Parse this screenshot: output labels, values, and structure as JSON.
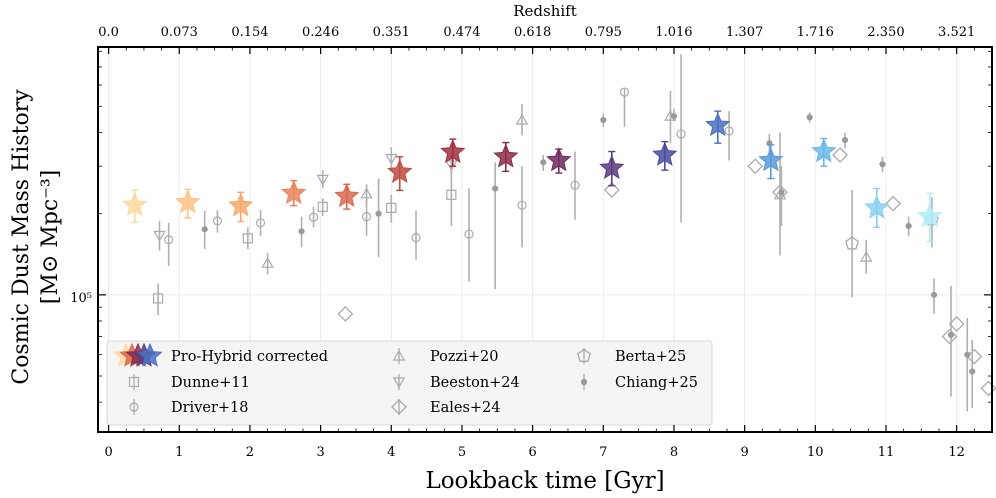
{
  "chart_data": {
    "type": "scatter",
    "xlabel": "Lookback time [Gyr]",
    "ylabel_line1": "Cosmic Dust Mass History",
    "ylabel_line2": "[M⊙ Mpc⁻³]",
    "top_axis_label": "Redshift",
    "top_ticks": [
      "0.0",
      "0.073",
      "0.154",
      "0.246",
      "0.351",
      "0.474",
      "0.618",
      "0.795",
      "1.016",
      "1.307",
      "1.716",
      "2.350",
      "3.521"
    ],
    "x_ticks": [
      "0",
      "1",
      "2",
      "3",
      "4",
      "5",
      "6",
      "7",
      "8",
      "9",
      "10",
      "11",
      "12"
    ],
    "y_tick_label": "10⁵",
    "y_scale": "log",
    "xlim": [
      -0.15,
      12.5
    ],
    "ylim": [
      31000,
      830000
    ],
    "grid": true,
    "legend_position": "lower-left",
    "series": [
      {
        "name": "Pro-Hybrid corrected",
        "marker": "star",
        "points": [
          {
            "x": 0.37,
            "y": 215000,
            "lo": 186000,
            "hi": 245000,
            "color": "#fdd9a0"
          },
          {
            "x": 1.12,
            "y": 220000,
            "lo": 193000,
            "hi": 246000,
            "color": "#fdc48a"
          },
          {
            "x": 1.87,
            "y": 214000,
            "lo": 187000,
            "hi": 240000,
            "color": "#f8a86c"
          },
          {
            "x": 2.62,
            "y": 238000,
            "lo": 214000,
            "hi": 265000,
            "color": "#e8845a"
          },
          {
            "x": 3.37,
            "y": 232000,
            "lo": 208000,
            "hi": 257000,
            "color": "#d8684c"
          },
          {
            "x": 4.12,
            "y": 285000,
            "lo": 244000,
            "hi": 325000,
            "color": "#c04a40"
          },
          {
            "x": 4.87,
            "y": 338000,
            "lo": 300000,
            "hi": 378000,
            "color": "#a03040"
          },
          {
            "x": 5.62,
            "y": 325000,
            "lo": 287000,
            "hi": 367000,
            "color": "#8c2a48"
          },
          {
            "x": 6.37,
            "y": 315000,
            "lo": 283000,
            "hi": 347000,
            "color": "#6e2a5e"
          },
          {
            "x": 7.12,
            "y": 295000,
            "lo": 254000,
            "hi": 340000,
            "color": "#5a3a80"
          },
          {
            "x": 7.87,
            "y": 330000,
            "lo": 290000,
            "hi": 370000,
            "color": "#4a4aa0"
          },
          {
            "x": 8.62,
            "y": 425000,
            "lo": 365000,
            "hi": 480000,
            "color": "#4a70c0"
          },
          {
            "x": 9.37,
            "y": 315000,
            "lo": 270000,
            "hi": 360000,
            "color": "#5a9ad8"
          },
          {
            "x": 10.12,
            "y": 340000,
            "lo": 300000,
            "hi": 380000,
            "color": "#6ab8e8"
          },
          {
            "x": 10.87,
            "y": 210000,
            "lo": 178000,
            "hi": 248000,
            "color": "#8ad0f0"
          },
          {
            "x": 11.62,
            "y": 195000,
            "lo": 157000,
            "hi": 238000,
            "color": "#b0eef8"
          }
        ]
      },
      {
        "name": "Dunne+11",
        "marker": "square",
        "points": [
          {
            "x": 0.7,
            "y": 97000,
            "lo": 84000,
            "hi": 110000
          },
          {
            "x": 1.97,
            "y": 162000,
            "lo": 148000,
            "hi": 178000
          },
          {
            "x": 3.03,
            "y": 212000,
            "lo": 196000,
            "hi": 228000
          },
          {
            "x": 4.0,
            "y": 210000,
            "lo": 185000,
            "hi": 235000
          },
          {
            "x": 4.85,
            "y": 235000,
            "lo": 180000,
            "hi": 300000
          }
        ]
      },
      {
        "name": "Driver+18",
        "marker": "circle",
        "points": [
          {
            "x": 0.85,
            "y": 160000,
            "lo": 128000,
            "hi": 185000
          },
          {
            "x": 1.54,
            "y": 188000,
            "lo": 170000,
            "hi": 206000
          },
          {
            "x": 2.15,
            "y": 185000,
            "lo": 165000,
            "hi": 206000
          },
          {
            "x": 2.9,
            "y": 194000,
            "lo": 178000,
            "hi": 212000
          },
          {
            "x": 3.65,
            "y": 195000,
            "lo": 165000,
            "hi": 225000
          },
          {
            "x": 4.35,
            "y": 163000,
            "lo": 135000,
            "hi": 205000
          },
          {
            "x": 5.1,
            "y": 168000,
            "lo": 112000,
            "hi": 248000
          },
          {
            "x": 5.85,
            "y": 215000,
            "lo": 150000,
            "hi": 300000
          },
          {
            "x": 6.6,
            "y": 255000,
            "lo": 190000,
            "hi": 340000
          },
          {
            "x": 7.3,
            "y": 565000,
            "lo": 420000,
            "hi": 580000
          },
          {
            "x": 8.1,
            "y": 395000,
            "lo": 185000,
            "hi": 780000
          },
          {
            "x": 8.78,
            "y": 405000,
            "lo": 315000,
            "hi": 480000
          }
        ]
      },
      {
        "name": "Pozzi+20",
        "marker": "triangle-up",
        "points": [
          {
            "x": 2.25,
            "y": 131000,
            "lo": 119000,
            "hi": 143000
          },
          {
            "x": 3.65,
            "y": 237000,
            "lo": 218000,
            "hi": 257000
          },
          {
            "x": 5.85,
            "y": 445000,
            "lo": 390000,
            "hi": 510000
          },
          {
            "x": 7.95,
            "y": 460000,
            "lo": 365000,
            "hi": 570000
          },
          {
            "x": 9.5,
            "y": 235000,
            "lo": 140000,
            "hi": 400000
          },
          {
            "x": 10.72,
            "y": 138000,
            "lo": 120000,
            "hi": 160000
          }
        ]
      },
      {
        "name": "Beeston+24",
        "marker": "triangle-down",
        "points": [
          {
            "x": 0.72,
            "y": 166000,
            "lo": 146000,
            "hi": 188000
          },
          {
            "x": 3.03,
            "y": 268000,
            "lo": 248000,
            "hi": 290000
          },
          {
            "x": 4.0,
            "y": 320000,
            "lo": 290000,
            "hi": 353000
          },
          {
            "x": 4.85,
            "y": 303000,
            "lo": 280000,
            "hi": 330000
          }
        ]
      },
      {
        "name": "Eales+24",
        "marker": "diamond",
        "points": [
          {
            "x": 3.35,
            "y": 85000
          },
          {
            "x": 7.12,
            "y": 245000
          },
          {
            "x": 9.15,
            "y": 300000
          },
          {
            "x": 9.5,
            "y": 240000
          },
          {
            "x": 10.35,
            "y": 330000
          },
          {
            "x": 11.1,
            "y": 218000
          },
          {
            "x": 11.9,
            "y": 70000
          },
          {
            "x": 12.0,
            "y": 78000
          },
          {
            "x": 12.25,
            "y": 59000
          },
          {
            "x": 12.45,
            "y": 45000
          }
        ]
      },
      {
        "name": "Berta+25",
        "marker": "pentagon",
        "points": [
          {
            "x": 10.52,
            "y": 155000,
            "lo": 98000,
            "hi": 245000
          },
          {
            "x": 11.65,
            "y": 190000,
            "lo": 150000,
            "hi": 230000
          }
        ]
      },
      {
        "name": "Chiang+25",
        "marker": "dot",
        "points": [
          {
            "x": 1.36,
            "y": 175000,
            "lo": 148000,
            "hi": 205000
          },
          {
            "x": 2.73,
            "y": 172000,
            "lo": 150000,
            "hi": 195000
          },
          {
            "x": 3.82,
            "y": 200000,
            "lo": 138000,
            "hi": 270000
          },
          {
            "x": 5.47,
            "y": 248000,
            "lo": 105000,
            "hi": 310000
          },
          {
            "x": 6.15,
            "y": 310000,
            "lo": 288000,
            "hi": 330000
          },
          {
            "x": 7.0,
            "y": 445000,
            "lo": 420000,
            "hi": 470000
          },
          {
            "x": 8.0,
            "y": 460000,
            "lo": 440000,
            "hi": 490000
          },
          {
            "x": 9.35,
            "y": 365000,
            "lo": 335000,
            "hi": 395000
          },
          {
            "x": 9.52,
            "y": 240000,
            "lo": 180000,
            "hi": 300000
          },
          {
            "x": 9.92,
            "y": 455000,
            "lo": 435000,
            "hi": 475000
          },
          {
            "x": 10.42,
            "y": 375000,
            "lo": 350000,
            "hi": 400000
          },
          {
            "x": 10.95,
            "y": 305000,
            "lo": 285000,
            "hi": 325000
          },
          {
            "x": 11.32,
            "y": 180000,
            "lo": 165000,
            "hi": 195000
          },
          {
            "x": 11.68,
            "y": 100000,
            "lo": 85000,
            "hi": 115000
          },
          {
            "x": 11.92,
            "y": 71000,
            "lo": 42000,
            "hi": 108000
          },
          {
            "x": 12.15,
            "y": 60000,
            "lo": 37000,
            "hi": 82000
          },
          {
            "x": 12.22,
            "y": 52000,
            "lo": 38000,
            "hi": 68000
          }
        ]
      }
    ]
  }
}
